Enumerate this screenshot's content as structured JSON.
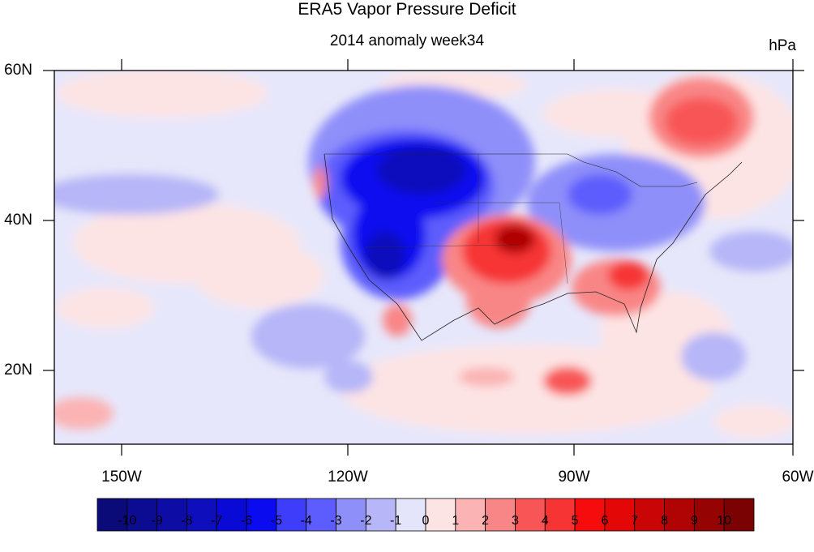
{
  "title": "ERA5 Vapor Pressure Deficit",
  "subtitle": "2014 anomaly week34",
  "units": "hPa",
  "map": {
    "lat_labels": [
      "60N",
      "40N",
      "20N"
    ],
    "lon_labels": [
      "150W",
      "120W",
      "90W",
      "60W"
    ],
    "extent": {
      "lon_min": -159,
      "lon_max": -60,
      "lat_min": 10,
      "lat_max": 60
    }
  },
  "colorbar": {
    "labels": [
      "-10",
      "-9",
      "-8",
      "-7",
      "-6",
      "-5",
      "-4",
      "-3",
      "-2",
      "-1",
      "0",
      "1",
      "2",
      "3",
      "4",
      "5",
      "6",
      "7",
      "8",
      "9",
      "10"
    ],
    "colors": [
      "#0a0a78",
      "#0c0c92",
      "#0d0da6",
      "#0e0ebd",
      "#0a0ad6",
      "#0b0bf0",
      "#3d3dfa",
      "#5d5dfd",
      "#8f8ffa",
      "#b6b6f8",
      "#e4e4fa",
      "#fde4e4",
      "#fbb3b3",
      "#f98686",
      "#f85656",
      "#f73434",
      "#f60c0c",
      "#e30707",
      "#ca0505",
      "#b00404",
      "#960303",
      "#7a0202"
    ]
  }
}
